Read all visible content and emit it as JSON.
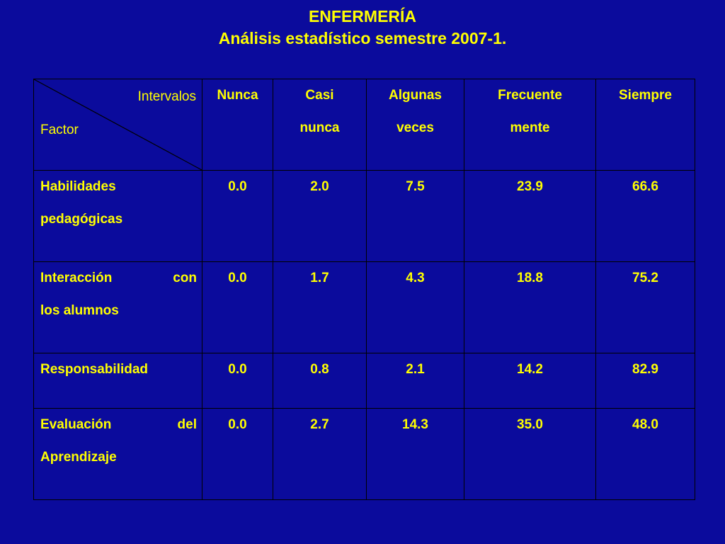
{
  "title": {
    "line1": "ENFERMERÍA",
    "line2": "Análisis estadístico semestre 2007-1."
  },
  "table": {
    "corner": {
      "top_label": "Intervalos",
      "bottom_label": "Factor"
    },
    "columns": [
      {
        "line1": "Nunca",
        "line2": ""
      },
      {
        "line1": "Casi",
        "line2": "nunca"
      },
      {
        "line1": "Algunas",
        "line2": "veces"
      },
      {
        "line1": "Frecuente",
        "line2": "mente"
      },
      {
        "line1": "Siempre",
        "line2": ""
      }
    ],
    "rows": [
      {
        "factor_line1": "Habilidades",
        "factor_line2": "pedagógicas",
        "values": [
          "0.0",
          "2.0",
          "7.5",
          "23.9",
          "66.6"
        ]
      },
      {
        "factor_line1": "Interacción con",
        "factor_line2": "los alumnos",
        "values": [
          "0.0",
          "1.7",
          "4.3",
          "18.8",
          "75.2"
        ]
      },
      {
        "factor_line1": "Responsabilidad",
        "factor_line2": "",
        "values": [
          "0.0",
          "0.8",
          "2.1",
          "14.2",
          "82.9"
        ]
      },
      {
        "factor_line1": "Evaluación del",
        "factor_line2": "Aprendizaje",
        "values": [
          "0.0",
          "2.7",
          "14.3",
          "35.0",
          "48.0"
        ]
      }
    ]
  },
  "colors": {
    "background": "#0b0b9c",
    "text": "#ffff00",
    "border": "#000000"
  }
}
